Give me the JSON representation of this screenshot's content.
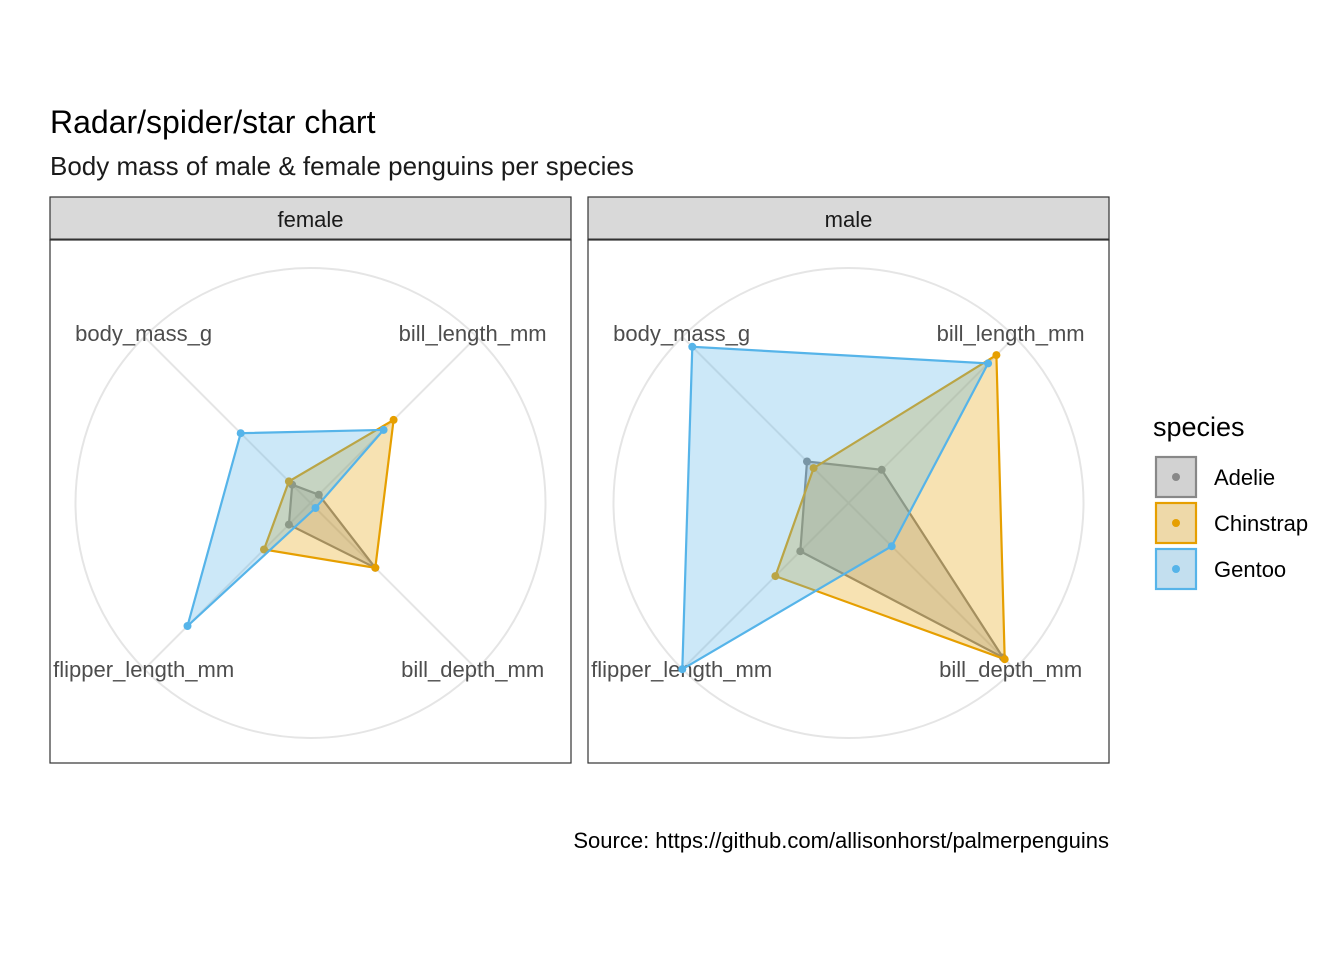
{
  "title": "Radar/spider/star chart",
  "subtitle": "Body mass of male & female penguins per species",
  "caption": "Source: https://github.com/allisonhorst/palmerpenguins",
  "colors": {
    "Adelie": "#888888",
    "Chinstrap": "#e69f00",
    "Gentoo": "#56b4e9"
  },
  "legend": {
    "title": "species",
    "items": [
      "Adelie",
      "Chinstrap",
      "Gentoo"
    ]
  },
  "chart_data": {
    "type": "radar",
    "axes": [
      "bill_length_mm",
      "bill_depth_mm",
      "flipper_length_mm",
      "body_mass_g"
    ],
    "rlim": [
      0,
      1
    ],
    "grid": true,
    "legend_position": "right",
    "facets": [
      {
        "name": "female",
        "series": [
          {
            "name": "Adelie",
            "values": [
              0.05,
              0.39,
              0.13,
              0.11
            ]
          },
          {
            "name": "Chinstrap",
            "values": [
              0.5,
              0.39,
              0.28,
              0.13
            ]
          },
          {
            "name": "Gentoo",
            "values": [
              0.44,
              0.03,
              0.74,
              0.42
            ]
          }
        ]
      },
      {
        "name": "male",
        "series": [
          {
            "name": "Adelie",
            "values": [
              0.2,
              0.93,
              0.29,
              0.25
            ]
          },
          {
            "name": "Chinstrap",
            "values": [
              0.89,
              0.94,
              0.44,
              0.21
            ]
          },
          {
            "name": "Gentoo",
            "values": [
              0.84,
              0.26,
              1.0,
              0.94
            ]
          }
        ]
      }
    ]
  }
}
